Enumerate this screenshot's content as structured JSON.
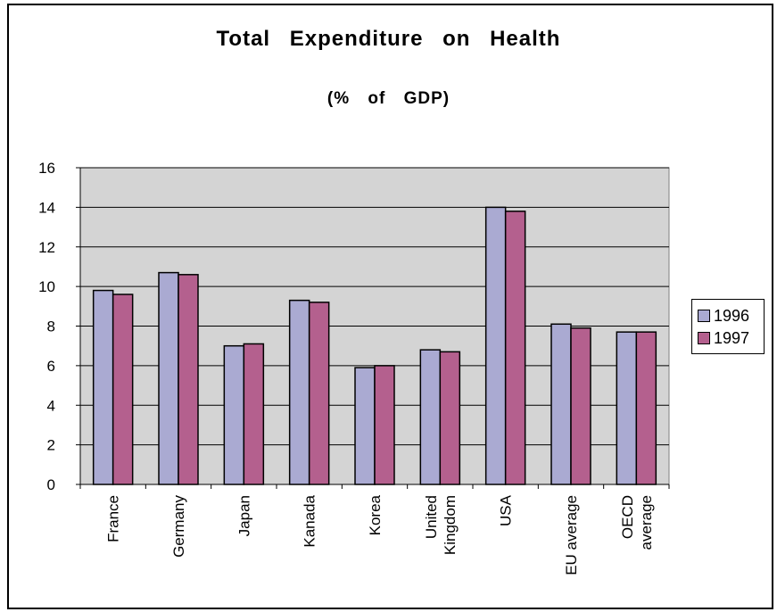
{
  "chart_data": {
    "type": "bar",
    "title": "Total   Expenditure   on   Health",
    "subtitle": "(%  of  GDP)",
    "categories": [
      [
        "France"
      ],
      [
        "Germany"
      ],
      [
        "Japan"
      ],
      [
        "Kanada"
      ],
      [
        "Korea"
      ],
      [
        "United",
        "Kingdom"
      ],
      [
        "USA"
      ],
      [
        "EU average"
      ],
      [
        "OECD",
        "average"
      ]
    ],
    "series": [
      {
        "name": "1996",
        "color": "#aaaad2",
        "values": [
          9.8,
          10.7,
          7.0,
          9.3,
          5.9,
          6.8,
          14.0,
          8.1,
          7.7
        ]
      },
      {
        "name": "1997",
        "color": "#b4608e",
        "values": [
          9.6,
          10.6,
          7.1,
          9.2,
          6.0,
          6.7,
          13.8,
          7.9,
          7.7
        ]
      }
    ],
    "ylim": [
      0,
      16
    ],
    "yticks": [
      0,
      2,
      4,
      6,
      8,
      10,
      12,
      14,
      16
    ],
    "grid": true,
    "plot_background": "#d4d4d4",
    "legend_position": "right"
  }
}
